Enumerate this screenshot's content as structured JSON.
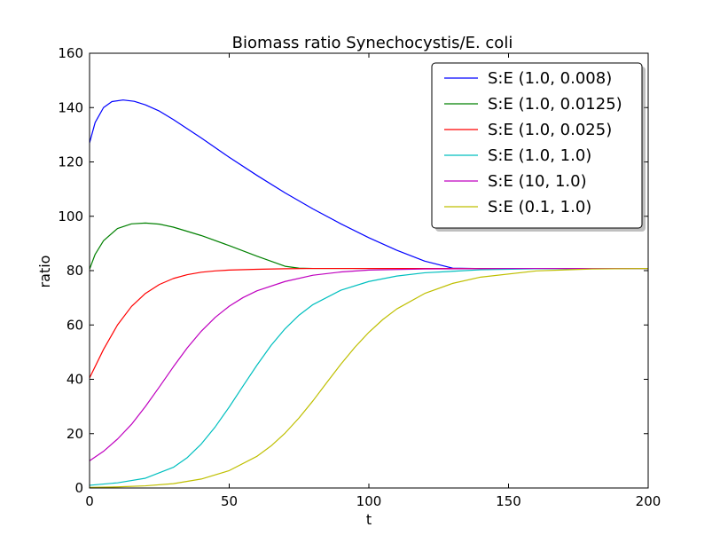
{
  "chart_data": {
    "type": "line",
    "title": "Biomass ratio Synechocystis/E. coli",
    "xlabel": "t",
    "ylabel": "ratio",
    "xlim": [
      0,
      200
    ],
    "ylim": [
      0,
      160
    ],
    "xticks": [
      0,
      50,
      100,
      150,
      200
    ],
    "yticks": [
      0,
      20,
      40,
      60,
      80,
      100,
      120,
      140,
      160
    ],
    "grid": false,
    "legend_position": "top-right",
    "series": [
      {
        "name": "S:E (1.0, 0.008)",
        "color": "#0000ff",
        "x": [
          0,
          2,
          5,
          8,
          12,
          16,
          20,
          25,
          30,
          40,
          50,
          60,
          70,
          80,
          90,
          100,
          110,
          120,
          130,
          138,
          150,
          160,
          180,
          200
        ],
        "y": [
          127,
          134.5,
          140,
          142.2,
          142.8,
          142.3,
          141,
          138.7,
          135.6,
          128.8,
          121.7,
          115,
          108.6,
          102.7,
          97.2,
          92.1,
          87.5,
          83.5,
          80.9,
          80.8,
          80.8,
          80.8,
          80.8,
          80.8
        ]
      },
      {
        "name": "S:E (1.0, 0.0125)",
        "color": "#008000",
        "x": [
          0,
          2,
          5,
          10,
          15,
          20,
          25,
          30,
          40,
          50,
          60,
          70,
          75,
          80,
          100,
          150,
          200
        ],
        "y": [
          80.5,
          86,
          91,
          95.5,
          97.2,
          97.5,
          97.1,
          96,
          92.9,
          89.2,
          85.3,
          81.6,
          80.9,
          80.8,
          80.8,
          80.8,
          80.8
        ]
      },
      {
        "name": "S:E (1.0, 0.025)",
        "color": "#ff0000",
        "x": [
          0,
          5,
          10,
          15,
          20,
          25,
          30,
          35,
          40,
          45,
          50,
          60,
          70,
          80,
          100,
          150,
          200
        ],
        "y": [
          40.5,
          51,
          60,
          66.8,
          71.6,
          74.9,
          77.1,
          78.5,
          79.4,
          79.9,
          80.2,
          80.5,
          80.7,
          80.8,
          80.8,
          80.8,
          80.8
        ]
      },
      {
        "name": "S:E (1.0, 1.0)",
        "color": "#00bfbf",
        "x": [
          0,
          10,
          20,
          30,
          35,
          40,
          45,
          50,
          55,
          60,
          65,
          70,
          75,
          80,
          90,
          100,
          110,
          120,
          140,
          160,
          200
        ],
        "y": [
          1,
          1.9,
          3.6,
          7.6,
          11.2,
          16.2,
          22.5,
          29.8,
          37.6,
          45.3,
          52.5,
          58.6,
          63.6,
          67.5,
          72.8,
          76,
          78,
          79.2,
          80.3,
          80.7,
          80.8
        ]
      },
      {
        "name": "S:E (10, 1.0)",
        "color": "#bf00bf",
        "x": [
          0,
          5,
          10,
          15,
          20,
          25,
          30,
          35,
          40,
          45,
          50,
          55,
          60,
          70,
          80,
          90,
          100,
          120,
          150,
          200
        ],
        "y": [
          10,
          13.5,
          18,
          23.4,
          30,
          37.2,
          44.6,
          51.6,
          57.7,
          62.8,
          66.9,
          70.1,
          72.6,
          76,
          78.3,
          79.5,
          80.2,
          80.6,
          80.8,
          80.8
        ]
      },
      {
        "name": "S:E (0.1, 1.0)",
        "color": "#bfbf00",
        "x": [
          0,
          10,
          20,
          30,
          40,
          50,
          60,
          65,
          70,
          75,
          80,
          85,
          90,
          95,
          100,
          105,
          110,
          120,
          130,
          140,
          160,
          180,
          200
        ],
        "y": [
          0.2,
          0.4,
          0.8,
          1.6,
          3.3,
          6.4,
          11.7,
          15.5,
          20.2,
          25.8,
          32.1,
          38.9,
          45.6,
          51.8,
          57.3,
          62,
          65.9,
          71.6,
          75.3,
          77.6,
          79.9,
          80.6,
          80.8
        ]
      }
    ]
  }
}
